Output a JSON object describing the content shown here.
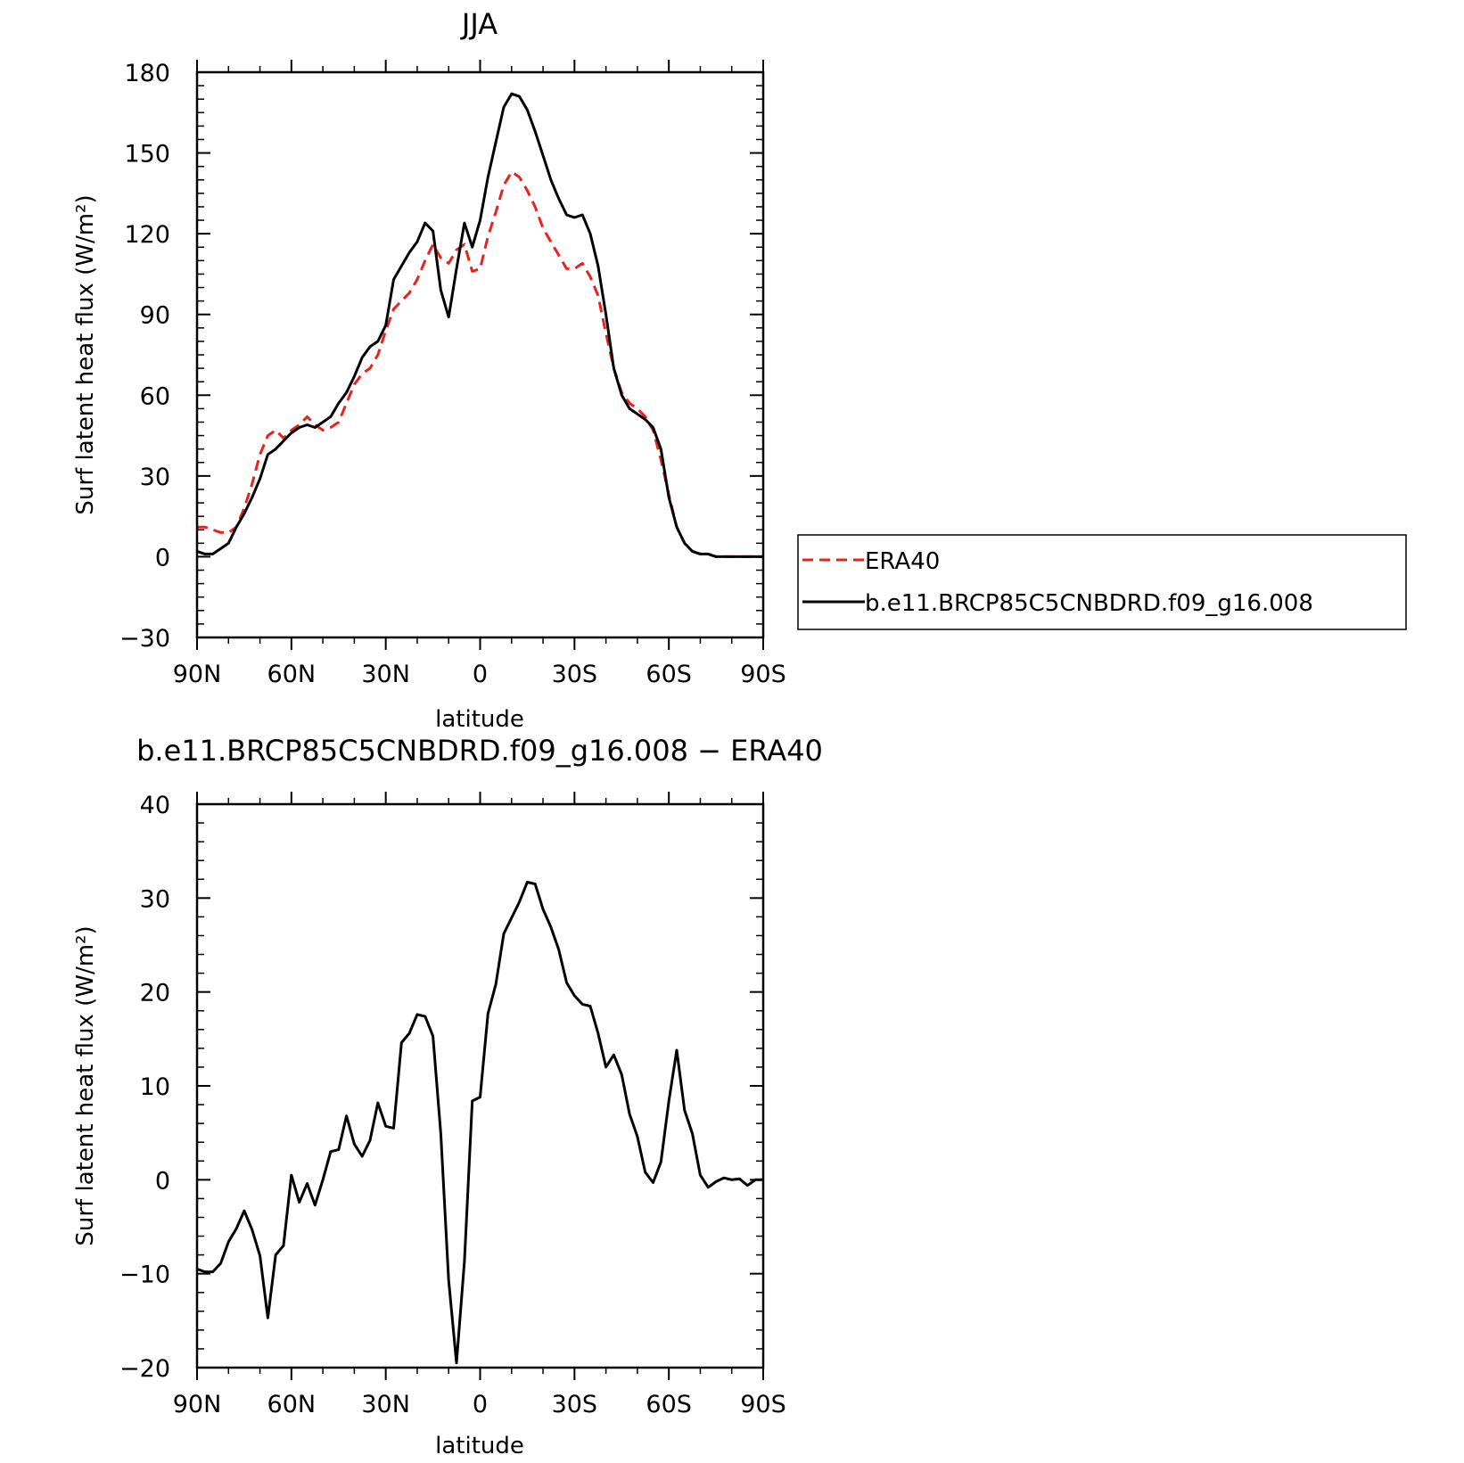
{
  "chart_data": [
    {
      "type": "line",
      "title": "JJA",
      "xlabel": "latitude",
      "ylabel": "Surf latent heat flux (W/m²)",
      "xlim": [
        -90,
        90
      ],
      "ylim": [
        -30,
        180
      ],
      "xticks": [
        -90,
        -60,
        -30,
        0,
        30,
        60,
        90
      ],
      "xtick_labels": [
        "90N",
        "60N",
        "30N",
        "0",
        "30S",
        "60S",
        "90S"
      ],
      "yticks": [
        -30,
        0,
        30,
        60,
        90,
        120,
        150,
        180
      ],
      "ytick_labels": [
        "−30",
        "0",
        "30",
        "60",
        "90",
        "120",
        "150",
        "180"
      ],
      "legend_position": "right",
      "grid": false,
      "series": [
        {
          "name": "ERA40",
          "color": "#e8231e",
          "style": "dashed",
          "x": [
            -90,
            -87.5,
            -85,
            -82.5,
            -80,
            -77.5,
            -75,
            -72.5,
            -70,
            -67.5,
            -65,
            -62.5,
            -60,
            -57.5,
            -55,
            -52.5,
            -50,
            -47.5,
            -45,
            -42.5,
            -40,
            -37.5,
            -35,
            -32.5,
            -30,
            -27.5,
            -25,
            -22.5,
            -20,
            -17.5,
            -15,
            -12.5,
            -10,
            -7.5,
            -5,
            -2.5,
            0,
            2.5,
            5,
            7.5,
            10,
            12.5,
            15,
            17.5,
            20,
            22.5,
            25,
            27.5,
            30,
            32.5,
            35,
            37.5,
            40,
            42.5,
            45,
            47.5,
            50,
            52.5,
            55,
            57.5,
            60,
            62.5,
            65,
            67.5,
            70,
            72.5,
            75,
            77.5,
            80,
            82.5,
            85,
            87.5,
            90
          ],
          "y": [
            11,
            11,
            10,
            9,
            9,
            11,
            18,
            27,
            38,
            45,
            47,
            44,
            47,
            49,
            52,
            49,
            47,
            48,
            50,
            57,
            64,
            68,
            70,
            75,
            84,
            92,
            95,
            98,
            103,
            110,
            116,
            111,
            109,
            114,
            116,
            106,
            107,
            119,
            128,
            138,
            143,
            141,
            136,
            130,
            122,
            117,
            112,
            107,
            107,
            109,
            104,
            97,
            83,
            70,
            61,
            57,
            55,
            52,
            47,
            36,
            23,
            11,
            5,
            2,
            1,
            1,
            0,
            0,
            0,
            0,
            0,
            0,
            0
          ]
        },
        {
          "name": "b.e11.BRCP85C5CNBDRD.f09_g16.008",
          "color": "#000000",
          "style": "solid",
          "x": [
            -90,
            -87.5,
            -85,
            -82.5,
            -80,
            -77.5,
            -75,
            -72.5,
            -70,
            -67.5,
            -65,
            -62.5,
            -60,
            -57.5,
            -55,
            -52.5,
            -50,
            -47.5,
            -45,
            -42.5,
            -40,
            -37.5,
            -35,
            -32.5,
            -30,
            -27.5,
            -25,
            -22.5,
            -20,
            -17.5,
            -15,
            -12.5,
            -10,
            -7.5,
            -5,
            -2.5,
            0,
            2.5,
            5,
            7.5,
            10,
            12.5,
            15,
            17.5,
            20,
            22.5,
            25,
            27.5,
            30,
            32.5,
            35,
            37.5,
            40,
            42.5,
            45,
            47.5,
            50,
            52.5,
            55,
            57.5,
            60,
            62.5,
            65,
            67.5,
            70,
            72.5,
            75,
            77.5,
            80,
            82.5,
            85,
            87.5,
            90
          ],
          "y": [
            2,
            1,
            1,
            3,
            5,
            11,
            16,
            22,
            29,
            38,
            40,
            43,
            46,
            48,
            49,
            48,
            50,
            52,
            57,
            61,
            67,
            74,
            78,
            80,
            86,
            103,
            108,
            113,
            117,
            124,
            121,
            99,
            89,
            107,
            124,
            115,
            125,
            141,
            154,
            167,
            172,
            171,
            166,
            158,
            149,
            140,
            133,
            127,
            126,
            127,
            120,
            108,
            90,
            70,
            60,
            55,
            53,
            51,
            48,
            40,
            22,
            11,
            5,
            2,
            1,
            1,
            0,
            0,
            0,
            0,
            0,
            0,
            0
          ]
        }
      ]
    },
    {
      "type": "line",
      "title": "b.e11.BRCP85C5CNBDRD.f09_g16.008 − ERA40",
      "xlabel": "latitude",
      "ylabel": "Surf latent heat flux (W/m²)",
      "xlim": [
        -90,
        90
      ],
      "ylim": [
        -20,
        40
      ],
      "xticks": [
        -90,
        -60,
        -30,
        0,
        30,
        60,
        90
      ],
      "xtick_labels": [
        "90N",
        "60N",
        "30N",
        "0",
        "30S",
        "60S",
        "90S"
      ],
      "yticks": [
        -20,
        -10,
        0,
        10,
        20,
        30,
        40
      ],
      "ytick_labels": [
        "−20",
        "−10",
        "0",
        "10",
        "20",
        "30",
        "40"
      ],
      "grid": false,
      "series": [
        {
          "color": "#000000",
          "style": "solid",
          "x": [
            -90,
            -87.5,
            -85,
            -82.5,
            -80,
            -77.5,
            -75,
            -72.5,
            -70,
            -67.5,
            -65,
            -62.5,
            -60,
            -57.5,
            -55,
            -52.5,
            -50,
            -47.5,
            -45,
            -42.5,
            -40,
            -37.5,
            -35,
            -32.5,
            -30,
            -27.5,
            -25,
            -22.5,
            -20,
            -17.5,
            -15,
            -12.5,
            -10,
            -7.5,
            -5,
            -2.5,
            0,
            2.5,
            5,
            7.5,
            10,
            12.5,
            15,
            17.5,
            20,
            22.5,
            25,
            27.5,
            30,
            32.5,
            35,
            37.5,
            40,
            42.5,
            45,
            47.5,
            50,
            52.5,
            55,
            57.5,
            60,
            62.5,
            65,
            67.5,
            70,
            72.5,
            75,
            77.5,
            80,
            82.5,
            85,
            87.5,
            90
          ],
          "y": [
            -9.5,
            -9.8,
            -9.8,
            -8.9,
            -6.6,
            -5.2,
            -3.3,
            -5.3,
            -8.1,
            -14.7,
            -8.0,
            -7.0,
            0.5,
            -2.4,
            -0.4,
            -2.7,
            0,
            3.0,
            3.2,
            6.8,
            3.8,
            2.5,
            4.2,
            8.2,
            5.7,
            5.5,
            14.6,
            15.6,
            17.6,
            17.4,
            15.3,
            4.9,
            -10.7,
            -19.5,
            -8.7,
            8.4,
            8.8,
            17.7,
            20.8,
            26.2,
            27.9,
            29.6,
            31.7,
            31.5,
            28.8,
            26.9,
            24.5,
            21.0,
            19.6,
            18.7,
            18.5,
            15.6,
            12.0,
            13.3,
            11.2,
            7.0,
            4.6,
            0.8,
            -0.3,
            1.9,
            8.4,
            13.8,
            7.4,
            4.9,
            0.5,
            -0.8,
            -0.2,
            0.2,
            0,
            0.1,
            -0.6,
            0,
            0
          ]
        }
      ]
    }
  ]
}
